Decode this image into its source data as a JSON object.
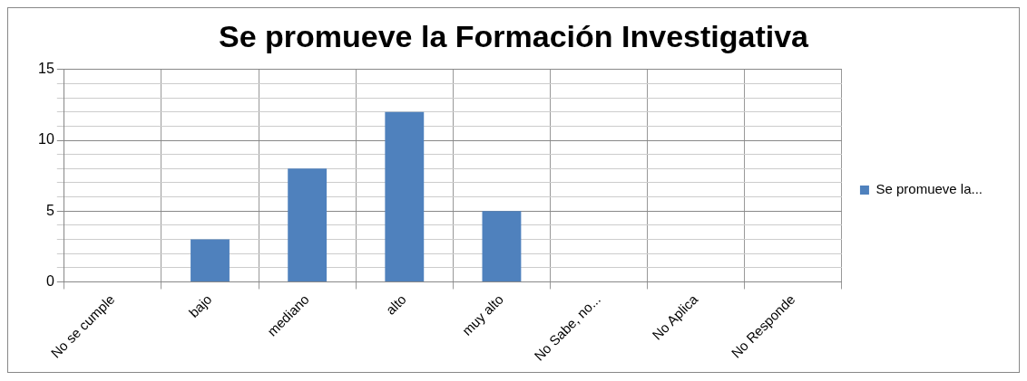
{
  "chart_data": {
    "type": "bar",
    "title": "Se promueve la Formación Investigativa",
    "categories": [
      "No se cumple",
      "bajo",
      "mediano",
      "alto",
      "muy alto",
      "No Sabe, no...",
      "No Aplica",
      "No Responde"
    ],
    "series": [
      {
        "name": "Se promueve la...",
        "color": "#4f81bd",
        "values": [
          0,
          3,
          8,
          12,
          5,
          0,
          0,
          0
        ]
      }
    ],
    "ylim": [
      0,
      15
    ],
    "yticks": [
      0,
      {
        "value": 1,
        "label": null
      },
      {
        "value": 2,
        "label": null
      },
      {
        "value": 3,
        "label": null
      },
      {
        "value": 4,
        "label": null
      },
      5,
      {
        "value": 6,
        "label": null
      },
      {
        "value": 7,
        "label": null
      },
      {
        "value": 8,
        "label": null
      },
      {
        "value": 9,
        "label": null
      },
      10,
      {
        "value": 11,
        "label": null
      },
      {
        "value": 12,
        "label": null
      },
      {
        "value": 13,
        "label": null
      },
      {
        "value": 14,
        "label": null
      },
      15
    ],
    "grid": true,
    "legend": "right"
  }
}
